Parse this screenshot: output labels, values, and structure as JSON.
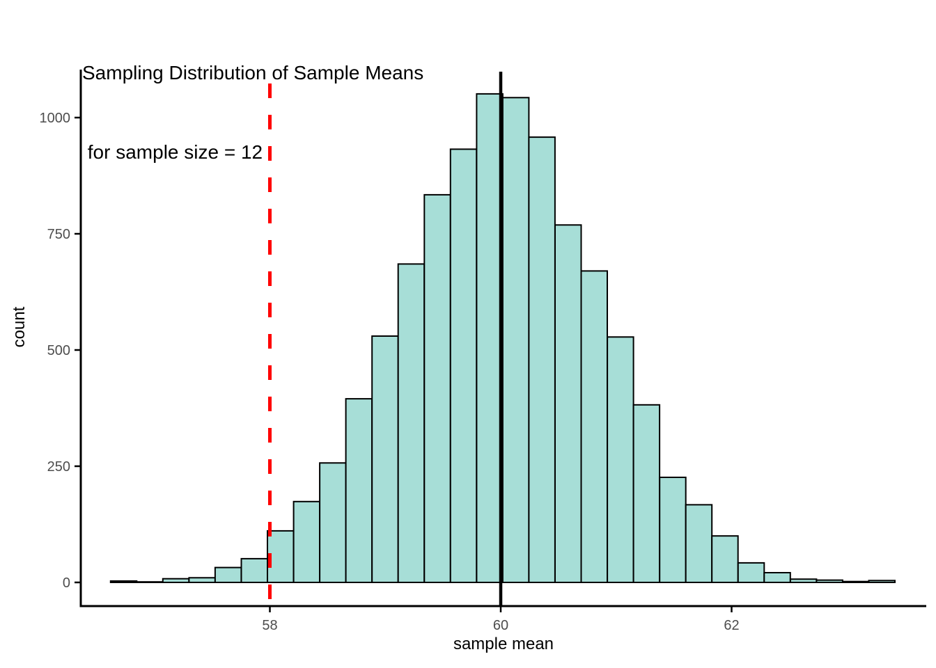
{
  "title": {
    "line1": "Sampling Distribution of Sample Means",
    "line2": " for sample size = 12"
  },
  "chart_data": {
    "type": "bar",
    "subtype": "histogram",
    "title": "Sampling Distribution of Sample Means\n for sample size = 12",
    "xlabel": "sample mean",
    "ylabel": "count",
    "x_ticks": [
      "58",
      "60",
      "62"
    ],
    "x_tick_values": [
      58,
      60,
      62
    ],
    "y_ticks": [
      "0",
      "250",
      "500",
      "750",
      "1000"
    ],
    "y_tick_values": [
      0,
      250,
      500,
      750,
      1000
    ],
    "xlim": [
      56.36,
      63.69
    ],
    "ylim": [
      0,
      1100
    ],
    "grid": false,
    "legend": false,
    "bin_start": 56.62,
    "bin_width": 0.2265,
    "counts": [
      3,
      1,
      8,
      10,
      32,
      51,
      111,
      174,
      257,
      395,
      530,
      685,
      834,
      932,
      1051,
      1043,
      958,
      769,
      670,
      528,
      382,
      226,
      167,
      100,
      42,
      21,
      7,
      5,
      2,
      4
    ],
    "vlines": [
      {
        "x": 58,
        "color": "#ff0000",
        "style": "dashed",
        "name": "red-dashed-reference-line"
      },
      {
        "x": 60,
        "color": "#000000",
        "style": "solid",
        "name": "black-mean-line"
      }
    ],
    "colors": {
      "bar_fill": "#a7ded7",
      "bar_stroke": "#000000",
      "axis_line": "#000000",
      "tick_label": "#4d4d4d",
      "text": "#000000",
      "background": "#ffffff"
    }
  }
}
